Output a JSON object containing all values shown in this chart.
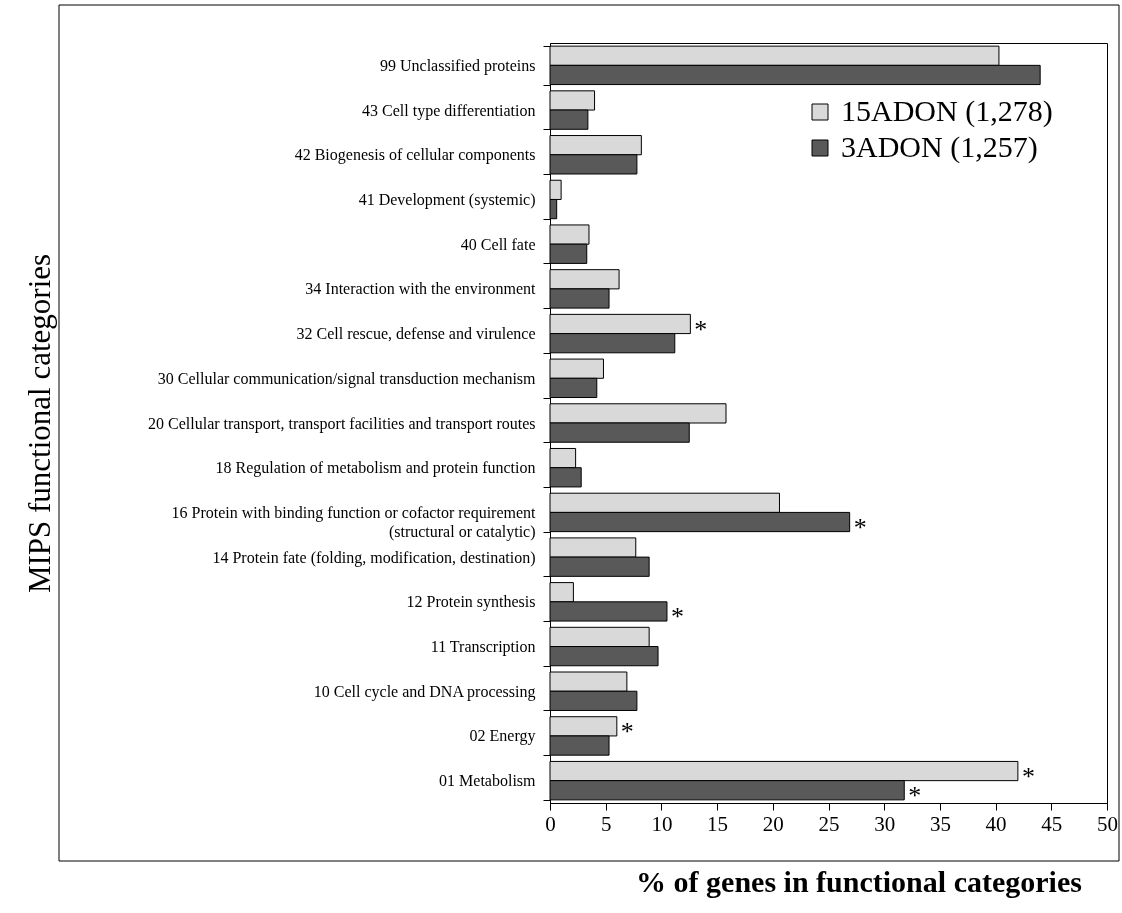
{
  "chart_data": {
    "type": "bar",
    "orientation": "horizontal",
    "xlabel": "% of genes in functional categories",
    "ylabel": "MIPS functional categories",
    "categories": [
      "99 Unclassified proteins",
      "43 Cell type differentiation",
      "42 Biogenesis of cellular components",
      "41 Development (systemic)",
      "40 Cell fate",
      "34 Interaction with the environment",
      "32 Cell rescue, defense and virulence",
      "30 Cellular communication/signal transduction mechanism",
      "20 Cellular transport, transport facilities and transport routes",
      "18 Regulation of metabolism and protein function",
      "16 Protein with binding function or cofactor requirement (structural or catalytic)",
      "14 Protein fate (folding, modification, destination)",
      "12 Protein synthesis",
      "11 Transcription",
      "10 Cell cycle and DNA processing",
      "02 Energy",
      "01 Metabolism"
    ],
    "series": [
      {
        "name": "15ADON (1,278)",
        "color": "#d9d9d9",
        "values": [
          40.3,
          4.0,
          8.2,
          1.0,
          3.5,
          6.2,
          12.6,
          4.8,
          15.8,
          2.3,
          20.6,
          7.7,
          2.1,
          8.9,
          6.9,
          6.0,
          42.0
        ]
      },
      {
        "name": "3ADON (1,257)",
        "color": "#595959",
        "values": [
          44.0,
          3.4,
          7.8,
          0.6,
          3.3,
          5.3,
          11.2,
          4.2,
          12.5,
          2.8,
          26.9,
          8.9,
          10.5,
          9.7,
          7.8,
          5.3,
          31.8
        ]
      }
    ],
    "xlim": [
      0,
      50
    ],
    "xticks": [
      0,
      5,
      10,
      15,
      20,
      25,
      30,
      35,
      40,
      45,
      50
    ],
    "grid": false,
    "legend": "top right",
    "annotations": [
      {
        "text": "*",
        "x": 12.6,
        "y": "32 Cell rescue, defense and virulence"
      },
      {
        "text": "*",
        "x": 26.9,
        "y": "16 Protein with binding function or cofactor requirement (structural or catalytic)"
      },
      {
        "text": "*",
        "x": 10.5,
        "y": "12 Protein synthesis"
      },
      {
        "text": "*",
        "x": 6.0,
        "y": "02 Energy"
      },
      {
        "text": "*",
        "x": 42.0,
        "y": "01 Metabolism"
      },
      {
        "text": "*",
        "x": 31.8,
        "y": "01 Metabolism"
      }
    ]
  }
}
